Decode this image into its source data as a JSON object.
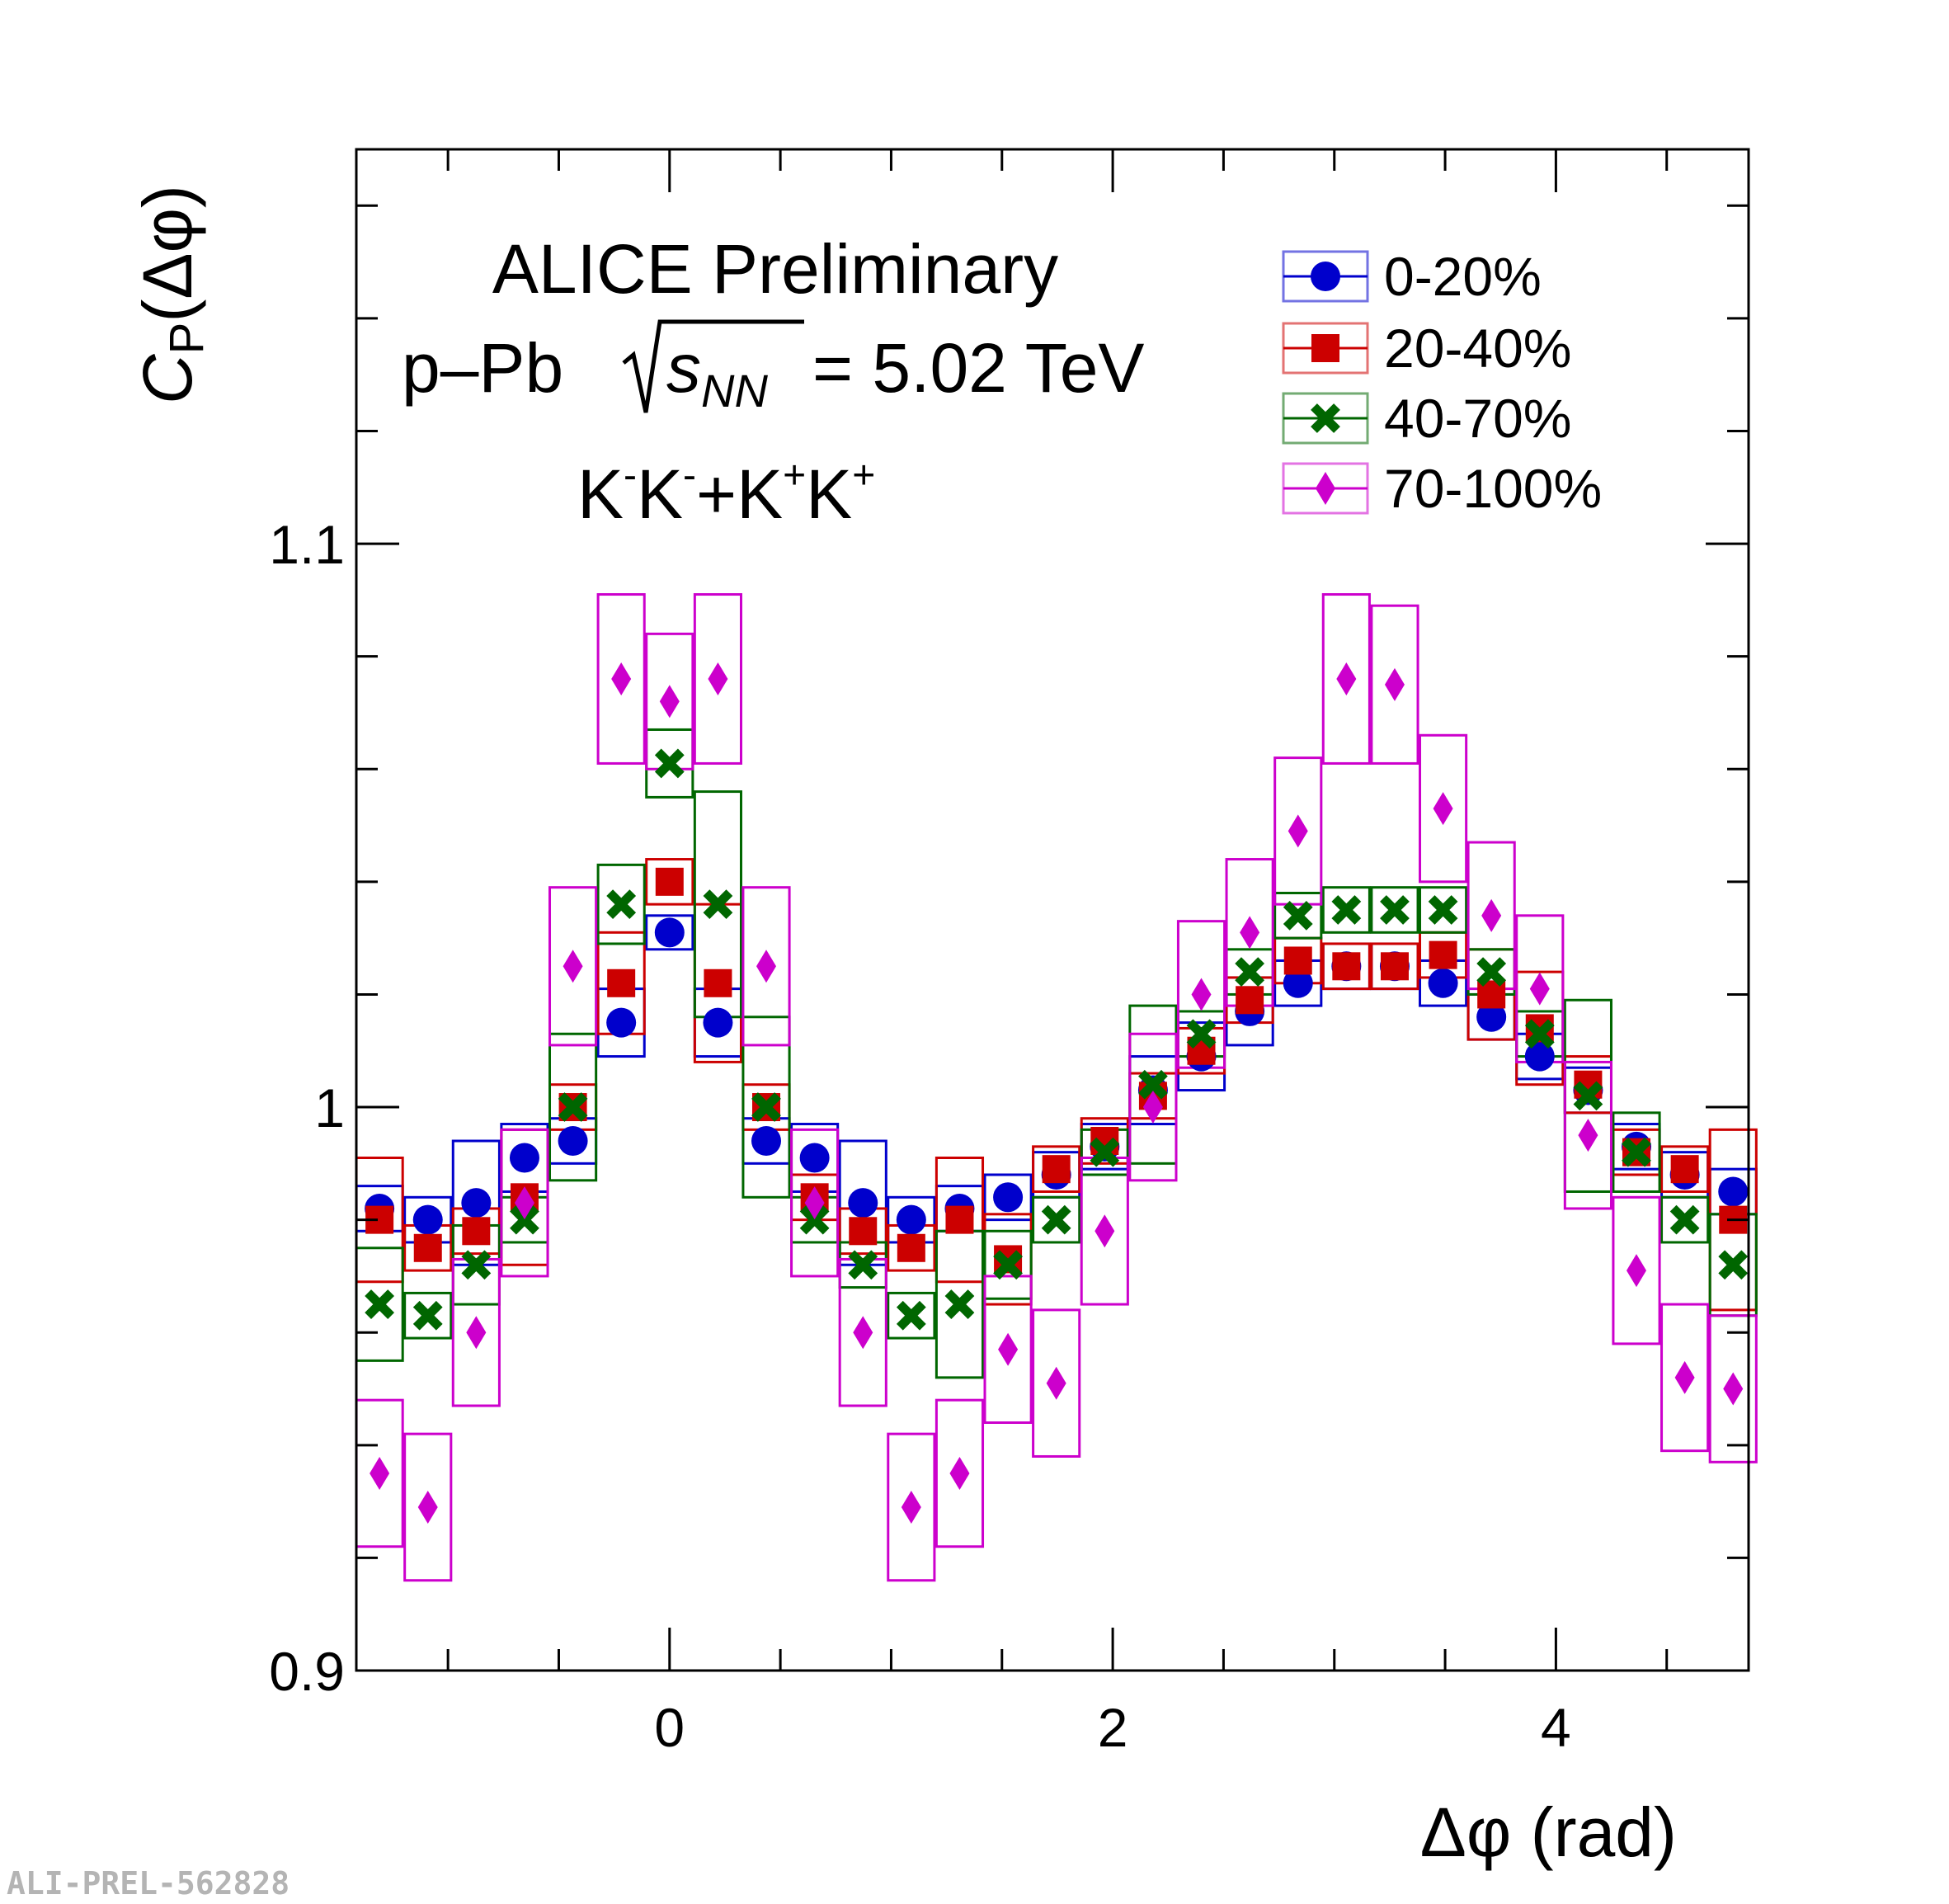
{
  "chart_data": {
    "type": "scatter",
    "title": "",
    "xlabel": "Δφ (rad)",
    "ylabel_main": "C",
    "ylabel_sub": "P",
    "ylabel_suffix": "(Δφ)",
    "xlim": [
      -1.4137,
      4.8695
    ],
    "ylim": [
      0.9,
      1.17
    ],
    "x_ticks": [
      0,
      2,
      4
    ],
    "x_tick_labels": [
      "0",
      "2",
      "4"
    ],
    "y_ticks": [
      0.9,
      1.0,
      1.1
    ],
    "y_tick_labels": [
      "0.9",
      "1",
      "1.1"
    ],
    "header": {
      "line1": "ALICE Preliminary",
      "line2_prefix": "p–Pb ",
      "line2_s": "s",
      "line2_nn": "NN",
      "line2_suffix": " = 5.02 TeV",
      "line3_k1": "K",
      "line3_m1": "-",
      "line3_k2": "K",
      "line3_m2": "-",
      "line3_plus": "+K",
      "line3_p1": "+",
      "line3_k3": "K",
      "line3_p2": "+"
    },
    "watermark": "ALI-PREL-562828",
    "legend_position": "top-right",
    "x": [
      -1.309,
      -1.0908,
      -0.8727,
      -0.6545,
      -0.4363,
      -0.2182,
      0.0,
      0.2182,
      0.4363,
      0.6545,
      0.8727,
      1.0908,
      1.309,
      1.5272,
      1.7453,
      1.9635,
      2.1817,
      2.3998,
      2.618,
      2.8362,
      3.0543,
      3.2725,
      3.4907,
      3.7088,
      3.927,
      4.1452,
      4.3633,
      4.5815,
      4.7997
    ],
    "syst_halfwidth": 0.1045,
    "series": [
      {
        "name": "0-20%",
        "color": "#0000cc",
        "marker": "circle",
        "y": [
          0.982,
          0.98,
          0.983,
          0.991,
          0.994,
          1.015,
          1.031,
          1.015,
          0.994,
          0.991,
          0.983,
          0.98,
          0.982,
          0.984,
          0.988,
          0.993,
          1.003,
          1.009,
          1.017,
          1.022,
          1.025,
          1.025,
          1.022,
          1.016,
          1.009,
          1.003,
          0.993,
          0.988,
          0.985
        ],
        "syst": [
          0.004,
          0.004,
          0.011,
          0.006,
          0.004,
          0.006,
          0.003,
          0.006,
          0.004,
          0.006,
          0.011,
          0.004,
          0.004,
          0.004,
          0.004,
          0.004,
          0.006,
          0.006,
          0.006,
          0.004,
          0.004,
          0.004,
          0.004,
          0.004,
          0.004,
          0.004,
          0.004,
          0.004,
          0.004
        ]
      },
      {
        "name": "20-40%",
        "color": "#cc0000",
        "marker": "square",
        "y": [
          0.98,
          0.975,
          0.978,
          0.984,
          1.0,
          1.022,
          1.04,
          1.022,
          1.0,
          0.984,
          0.978,
          0.975,
          0.98,
          0.973,
          0.989,
          0.994,
          1.002,
          1.01,
          1.019,
          1.026,
          1.025,
          1.025,
          1.027,
          1.02,
          1.014,
          1.004,
          0.992,
          0.989,
          0.98
        ],
        "syst": [
          0.011,
          0.004,
          0.004,
          0.012,
          0.004,
          0.009,
          0.004,
          0.014,
          0.004,
          0.004,
          0.004,
          0.004,
          0.011,
          0.008,
          0.004,
          0.004,
          0.004,
          0.004,
          0.004,
          0.004,
          0.004,
          0.004,
          0.004,
          0.008,
          0.01,
          0.005,
          0.004,
          0.004,
          0.016
        ]
      },
      {
        "name": "40-70%",
        "color": "#006600",
        "marker": "cross",
        "y": [
          0.965,
          0.963,
          0.972,
          0.98,
          1.0,
          1.036,
          1.061,
          1.036,
          1.0,
          0.98,
          0.972,
          0.963,
          0.965,
          0.972,
          0.98,
          0.992,
          1.004,
          1.013,
          1.024,
          1.034,
          1.035,
          1.035,
          1.035,
          1.024,
          1.013,
          1.002,
          0.992,
          0.98,
          0.972
        ],
        "syst": [
          0.01,
          0.004,
          0.007,
          0.004,
          0.013,
          0.007,
          0.006,
          0.02,
          0.016,
          0.004,
          0.004,
          0.004,
          0.013,
          0.006,
          0.004,
          0.004,
          0.014,
          0.004,
          0.004,
          0.004,
          0.004,
          0.004,
          0.004,
          0.004,
          0.004,
          0.017,
          0.007,
          0.004,
          0.009
        ]
      },
      {
        "name": "70-100%",
        "color": "#cc00cc",
        "marker": "diamond",
        "y": [
          0.935,
          0.929,
          0.96,
          0.983,
          1.025,
          1.076,
          1.072,
          1.076,
          1.025,
          0.983,
          0.96,
          0.929,
          0.935,
          0.957,
          0.951,
          0.978,
          1.0,
          1.02,
          1.031,
          1.049,
          1.076,
          1.075,
          1.053,
          1.034,
          1.021,
          0.995,
          0.971,
          0.952,
          0.95
        ],
        "syst": [
          0.013,
          0.013,
          0.013,
          0.013,
          0.014,
          0.015,
          0.012,
          0.015,
          0.014,
          0.013,
          0.013,
          0.013,
          0.013,
          0.013,
          0.013,
          0.013,
          0.013,
          0.013,
          0.013,
          0.013,
          0.015,
          0.014,
          0.013,
          0.013,
          0.013,
          0.013,
          0.013,
          0.013,
          0.013
        ]
      }
    ]
  }
}
